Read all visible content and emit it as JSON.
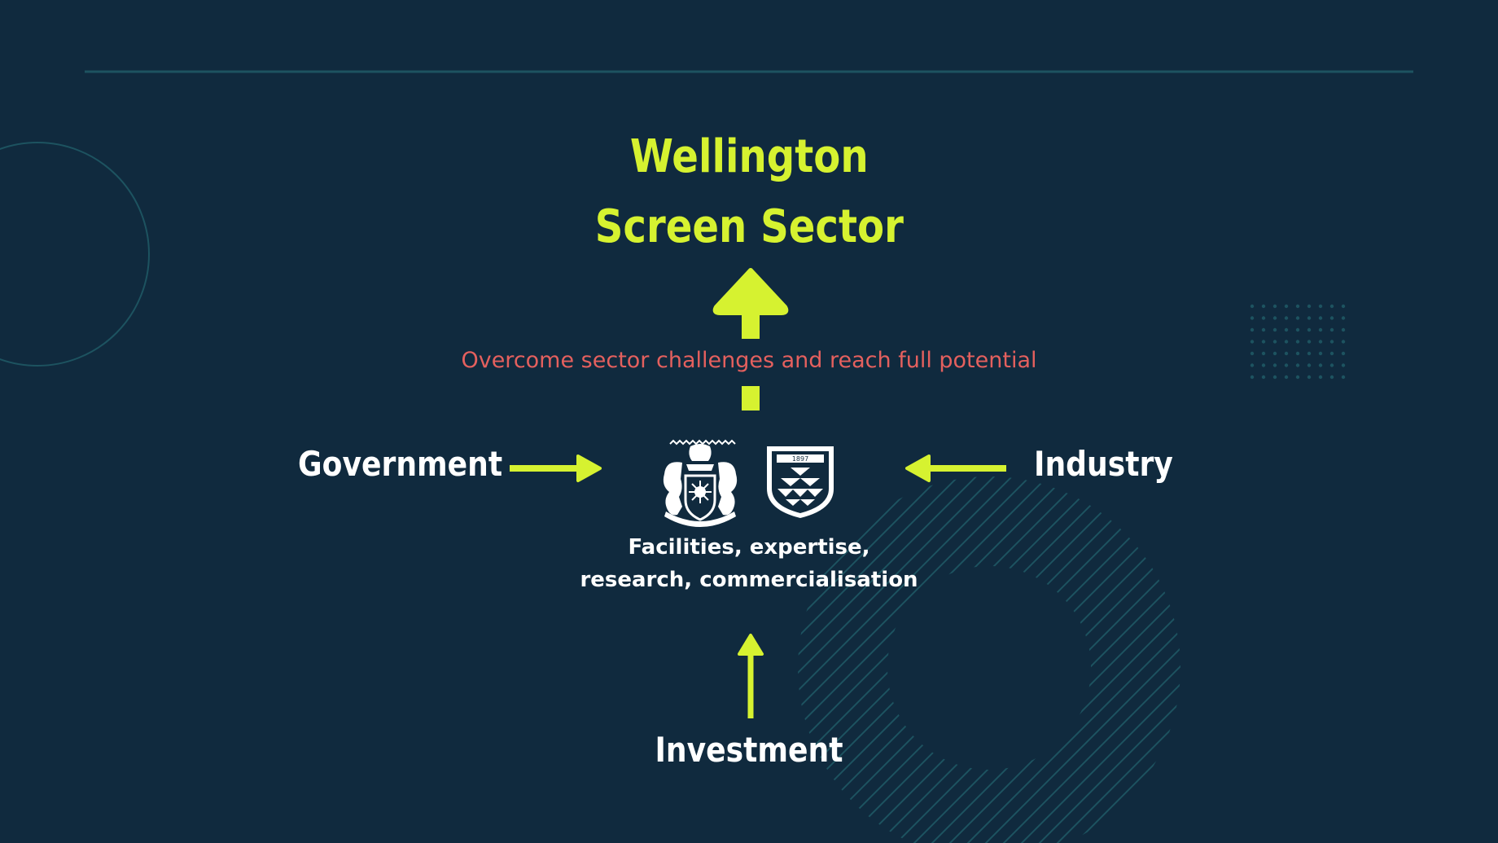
{
  "diagram": {
    "title_lines": [
      "Wellington",
      "Screen Sector"
    ],
    "goal": "Overcome sector challenges and reach full potential",
    "inputs": {
      "left": "Government",
      "right": "Industry",
      "bottom": "Investment"
    },
    "center_lines": [
      "Facilities, expertise,",
      "research, commercialisation"
    ],
    "center_badge_year": "1897"
  },
  "colors": {
    "background": "#102a3e",
    "accent": "#d6f230",
    "goal_text": "#e4605e",
    "label_text": "#ffffff",
    "decoration": "#1d5360"
  },
  "icons": [
    "arrow-up-icon",
    "arrow-right-icon",
    "arrow-left-icon",
    "coat-of-arms-icon",
    "shield-crest-icon"
  ]
}
